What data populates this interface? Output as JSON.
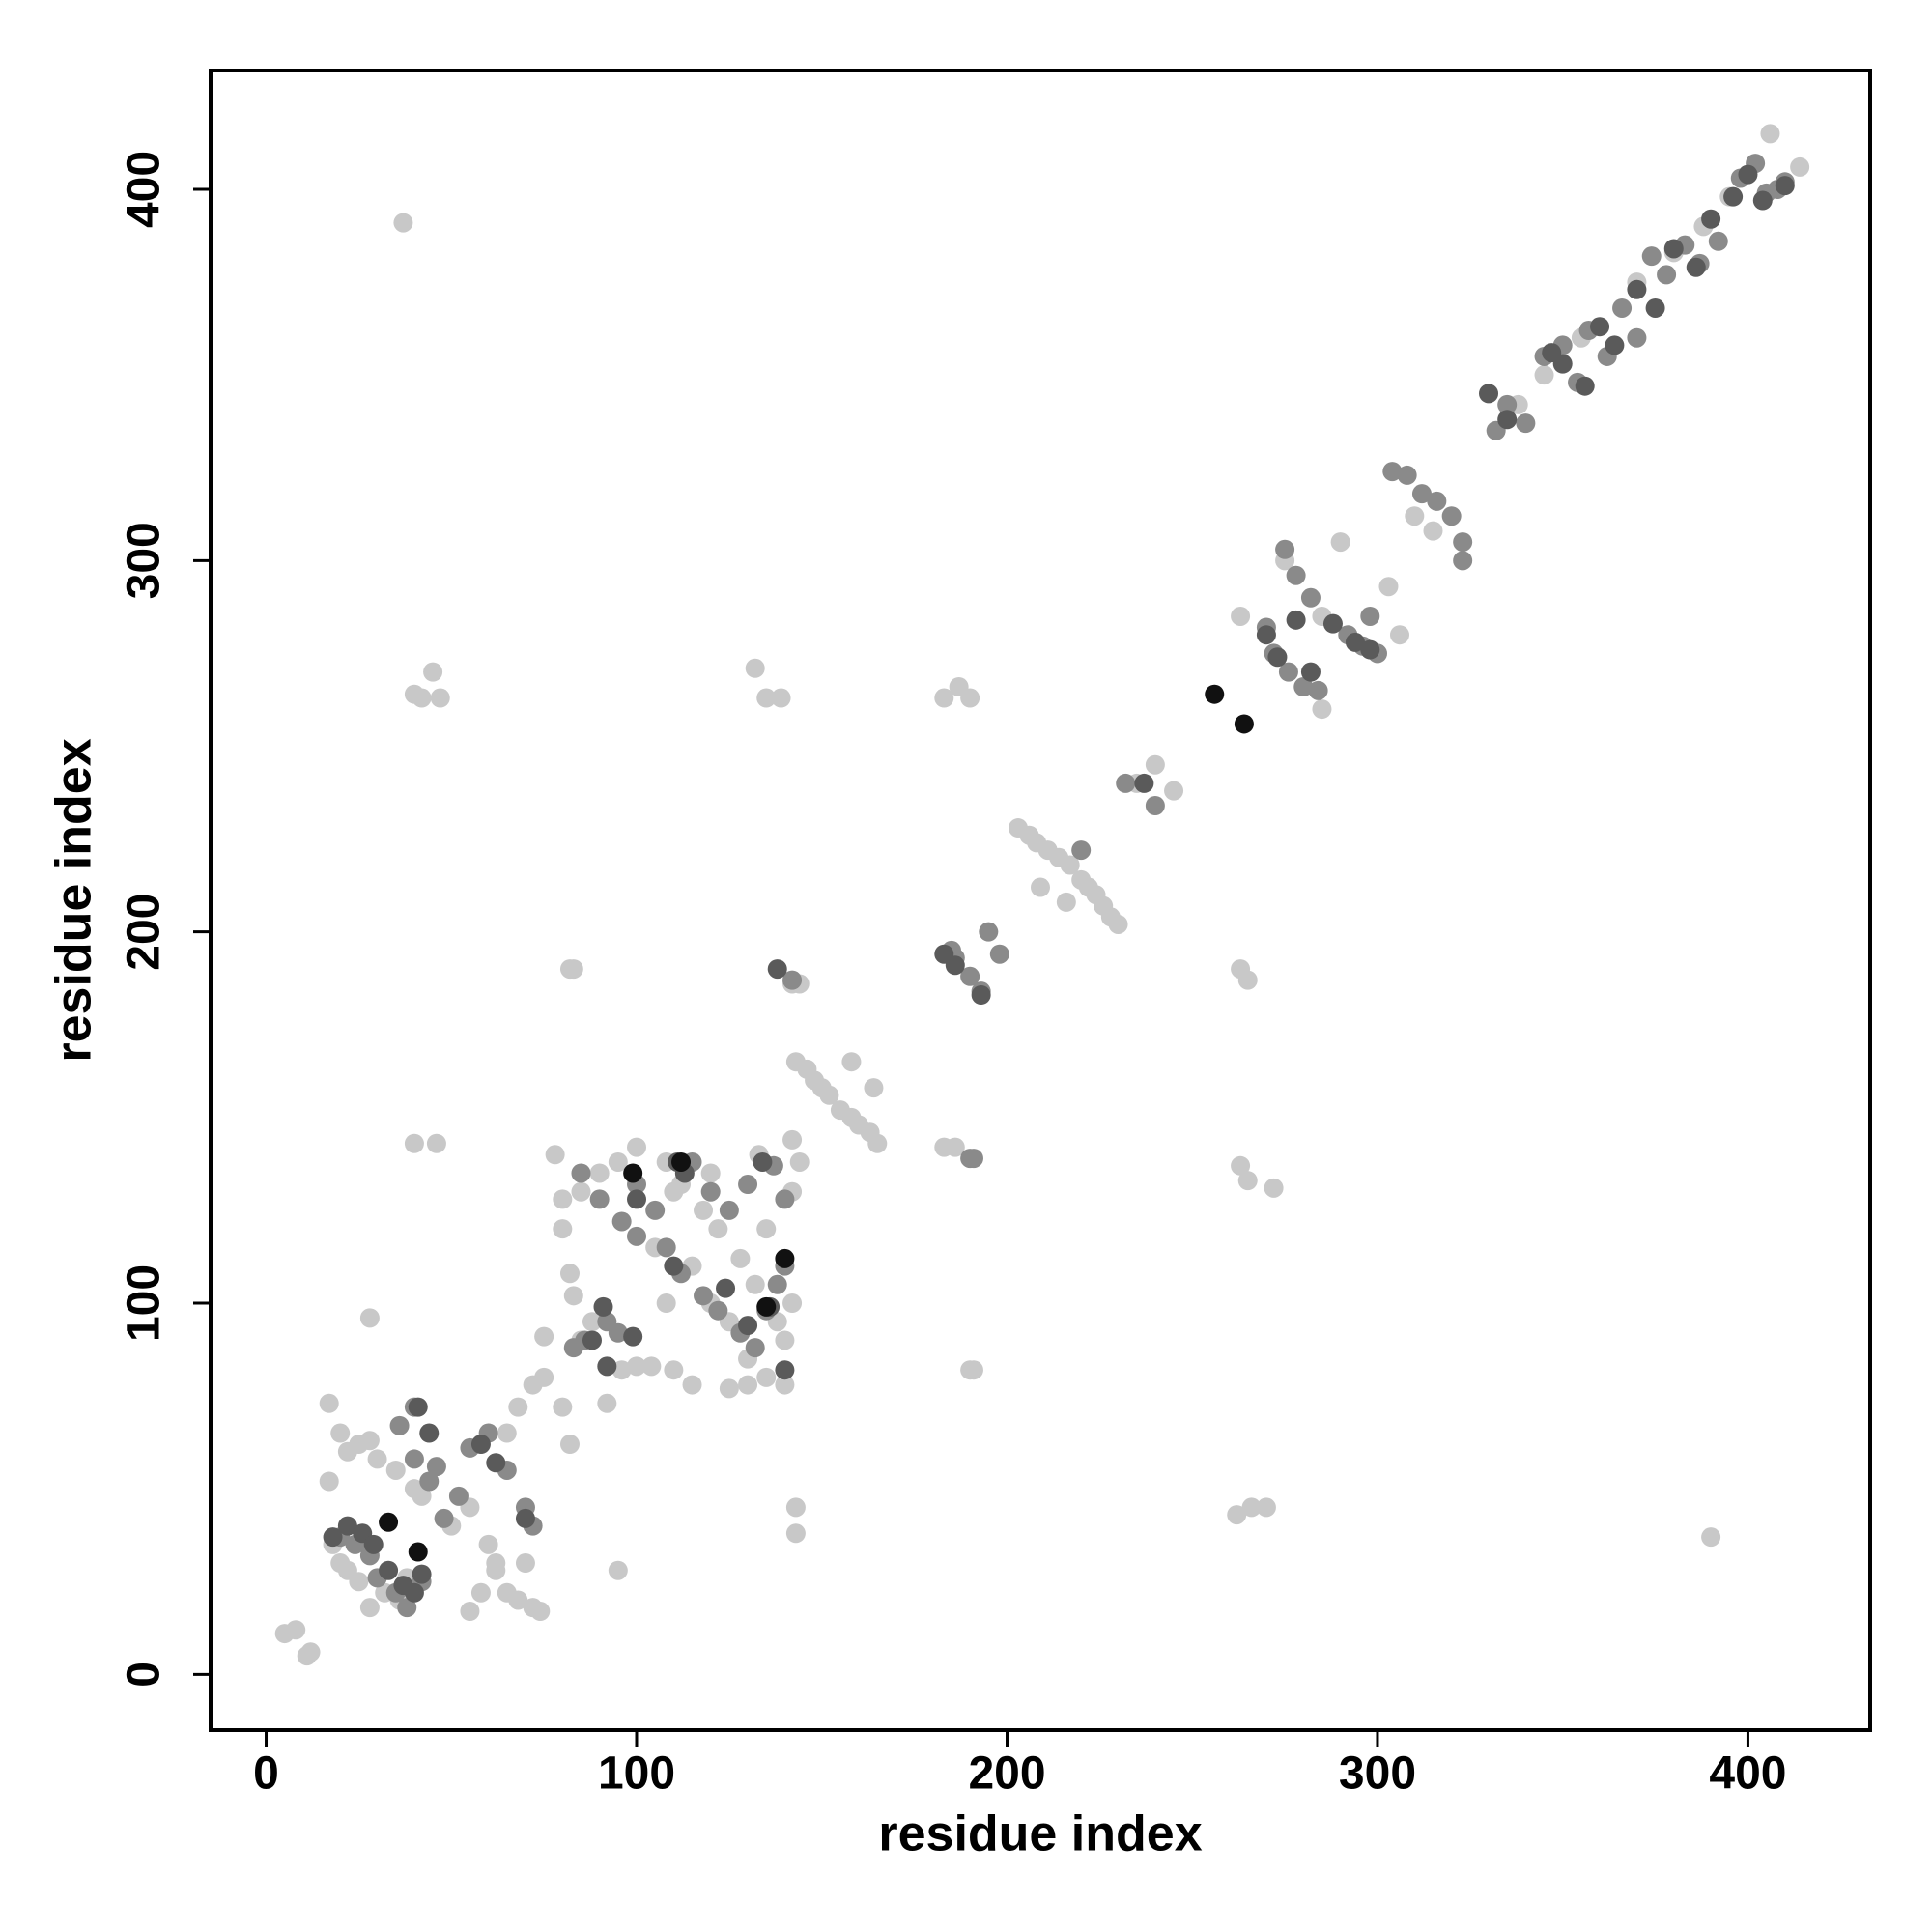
{
  "chart_data": {
    "type": "scatter",
    "xlabel": "residue index",
    "ylabel": "residue index",
    "xlim": [
      -15,
      433
    ],
    "ylim": [
      -15,
      432
    ],
    "xticks": [
      0,
      100,
      200,
      300,
      400
    ],
    "yticks": [
      0,
      100,
      200,
      300,
      400
    ],
    "grid": false,
    "series": [
      {
        "color": "#c8c8c8",
        "x": [
          37,
          40,
          42,
          45,
          47,
          132,
          135,
          139,
          183,
          187,
          190,
          40,
          46,
          28,
          95,
          143,
          143,
          266,
          262,
          270,
          390,
          263,
          265,
          263,
          265,
          272,
          190,
          191,
          83,
          82,
          142,
          144,
          142,
          144,
          183,
          186,
          5,
          8,
          11,
          12,
          143,
          146,
          148,
          150,
          152,
          155,
          158,
          160,
          163,
          165,
          158,
          164,
          203,
          206,
          208,
          211,
          214,
          217,
          220,
          222,
          224,
          226,
          228,
          230,
          209,
          216,
          235,
          240,
          245,
          300,
          303,
          306,
          310,
          315,
          338,
          345,
          355,
          370,
          380,
          388,
          395,
          406,
          414,
          290,
          285,
          275,
          263,
          285,
          17,
          17,
          20,
          22,
          25,
          28,
          30,
          35,
          40,
          18,
          20,
          22,
          25,
          28,
          32,
          36,
          38,
          42,
          50,
          55,
          60,
          62,
          65,
          68,
          72,
          74,
          55,
          58,
          62,
          70,
          65,
          68,
          72,
          75,
          80,
          82,
          85,
          88,
          92,
          96,
          100,
          104,
          110,
          115,
          125,
          130,
          135,
          140,
          140,
          142,
          138,
          132,
          128,
          122,
          118,
          112,
          108,
          100,
          95,
          90,
          85,
          80,
          78,
          80,
          82,
          83,
          110,
          115,
          105,
          120,
          125,
          130,
          133,
          120,
          135,
          142,
          108,
          75
        ],
        "values": [
          391,
          264,
          263,
          270,
          263,
          271,
          263,
          263,
          263,
          266,
          263,
          143,
          143,
          96,
          28,
          45,
          38,
          45,
          43,
          45,
          37,
          190,
          187,
          137,
          133,
          131,
          82,
          82,
          190,
          190,
          186,
          186,
          144,
          138,
          142,
          142,
          11,
          12,
          5,
          6,
          165,
          163,
          160,
          158,
          156,
          152,
          150,
          148,
          146,
          143,
          165,
          158,
          228,
          226,
          224,
          222,
          220,
          218,
          214,
          212,
          210,
          207,
          204,
          202,
          212,
          208,
          240,
          245,
          238,
          275,
          293,
          280,
          312,
          308,
          342,
          350,
          360,
          375,
          383,
          390,
          398,
          415,
          406,
          305,
          285,
          300,
          285,
          260,
          73,
          52,
          65,
          60,
          62,
          63,
          58,
          55,
          50,
          35,
          30,
          28,
          25,
          18,
          22,
          20,
          26,
          48,
          40,
          45,
          35,
          28,
          22,
          20,
          18,
          17,
          17,
          22,
          30,
          30,
          65,
          72,
          78,
          80,
          72,
          62,
          90,
          95,
          73,
          82,
          83,
          83,
          82,
          78,
          77,
          78,
          80,
          78,
          90,
          100,
          95,
          105,
          112,
          120,
          125,
          132,
          138,
          142,
          138,
          135,
          130,
          128,
          140,
          120,
          108,
          102,
          130,
          110,
          115,
          100,
          95,
          85,
          140,
          135,
          120,
          130,
          100,
          91
        ]
      },
      {
        "color": "#8a8a8a",
        "x": [
          20,
          24,
          28,
          30,
          35,
          38,
          42,
          40,
          44,
          46,
          36,
          40,
          55,
          60,
          65,
          70,
          72,
          48,
          52,
          83,
          86,
          92,
          95,
          100,
          105,
          108,
          112,
          118,
          122,
          128,
          132,
          135,
          138,
          140,
          85,
          90,
          96,
          100,
          115,
          120,
          125,
          130,
          137,
          140,
          142,
          186,
          190,
          193,
          195,
          198,
          185,
          190,
          191,
          220,
          232,
          240,
          270,
          272,
          276,
          280,
          284,
          278,
          282,
          275,
          292,
          296,
          300,
          298,
          304,
          308,
          312,
          316,
          320,
          323,
          323,
          332,
          335,
          340,
          345,
          350,
          354,
          357,
          362,
          366,
          370,
          374,
          378,
          383,
          387,
          392,
          398,
          402,
          405,
          408,
          410
        ],
        "values": [
          37,
          35,
          32,
          26,
          22,
          18,
          25,
          58,
          52,
          56,
          67,
          72,
          61,
          65,
          55,
          45,
          40,
          42,
          48,
          88,
          90,
          95,
          92,
          132,
          125,
          115,
          108,
          102,
          98,
          92,
          88,
          98,
          105,
          110,
          135,
          128,
          122,
          118,
          138,
          130,
          125,
          132,
          137,
          128,
          187,
          193,
          188,
          184,
          200,
          194,
          195,
          139,
          139,
          222,
          240,
          234,
          282,
          275,
          270,
          266,
          265,
          296,
          290,
          303,
          280,
          277,
          275,
          285,
          324,
          323,
          318,
          316,
          312,
          305,
          300,
          335,
          342,
          337,
          355,
          358,
          348,
          362,
          355,
          368,
          360,
          382,
          377,
          385,
          380,
          386,
          403,
          407,
          399,
          400,
          402
        ]
      },
      {
        "color": "#5a5a5a",
        "x": [
          18,
          22,
          26,
          29,
          33,
          37,
          40,
          42,
          41,
          44,
          58,
          62,
          70,
          91,
          99,
          88,
          92,
          100,
          110,
          111,
          113,
          124,
          130,
          134,
          136,
          140,
          138,
          183,
          186,
          193,
          237,
          270,
          273,
          278,
          282,
          288,
          294,
          298,
          330,
          335,
          347,
          350,
          356,
          360,
          364,
          370,
          375,
          380,
          386,
          390,
          396,
          400,
          404,
          410
        ],
        "values": [
          37,
          40,
          38,
          35,
          28,
          24,
          22,
          27,
          72,
          65,
          62,
          57,
          42,
          99,
          91,
          90,
          83,
          128,
          110,
          138,
          135,
          104,
          94,
          138,
          99,
          82,
          190,
          194,
          191,
          183,
          240,
          280,
          274,
          284,
          270,
          283,
          278,
          276,
          345,
          338,
          356,
          353,
          347,
          363,
          358,
          373,
          368,
          384,
          379,
          392,
          398,
          404,
          397,
          401
        ]
      },
      {
        "color": "#111111",
        "x": [
          33,
          41,
          256,
          264,
          99,
          135,
          112,
          140
        ],
        "values": [
          41,
          33,
          264,
          256,
          135,
          99,
          138,
          112
        ]
      }
    ]
  }
}
